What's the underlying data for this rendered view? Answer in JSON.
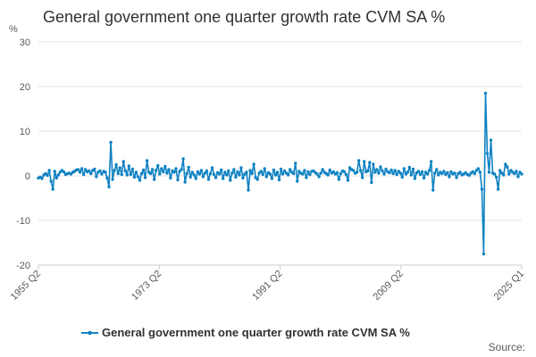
{
  "chart_data": {
    "type": "line",
    "title": "General government one quarter growth rate CVM SA %",
    "ylabel": "%",
    "xlabel": "",
    "ylim": [
      -20,
      30
    ],
    "yticks": [
      -20,
      -10,
      0,
      10,
      20,
      30
    ],
    "x_start": "1955 Q2",
    "x_end": "2025 Q1",
    "xtick_labels": [
      "1955 Q2",
      "1973 Q2",
      "1991 Q2",
      "2009 Q2",
      "2025 Q1"
    ],
    "legend": "General government one quarter growth rate CVM SA %",
    "legend_position": "bottom",
    "source_label": "Source:",
    "color": "#0f82c2",
    "series": [
      {
        "name": "General government one quarter growth rate CVM SA %",
        "values": [
          -0.5,
          -0.3,
          -0.6,
          0.2,
          0.5,
          0.1,
          1.2,
          -1.2,
          -3.0,
          1.0,
          -0.5,
          0.2,
          0.8,
          1.2,
          0.9,
          0.3,
          0.5,
          0.6,
          0.4,
          0.8,
          1.0,
          1.3,
          1.4,
          0.8,
          1.6,
          0.3,
          1.4,
          0.9,
          1.1,
          0.5,
          1.2,
          1.5,
          -0.2,
          0.8,
          1.1,
          0.4,
          1.0,
          0.8,
          -0.5,
          -2.5,
          7.5,
          -0.8,
          1.2,
          2.5,
          0.5,
          1.8,
          0.3,
          3.2,
          1.1,
          0.2,
          2.2,
          0.3,
          1.5,
          -0.3,
          0.8,
          -0.2,
          -1.0,
          0.5,
          1.3,
          -0.4,
          3.4,
          0.8,
          0.5,
          1.4,
          -0.8,
          1.2,
          2.3,
          0.4,
          1.6,
          0.9,
          2.1,
          0.6,
          1.4,
          -0.5,
          1.1,
          0.8,
          1.6,
          -0.9,
          1.0,
          1.4,
          3.8,
          -1.4,
          0.5,
          1.9,
          -0.3,
          0.8,
          0.2,
          -0.6,
          0.9,
          0.4,
          1.2,
          -0.2,
          0.6,
          1.1,
          -0.8,
          0.5,
          1.8,
          0.3,
          -0.4,
          0.7,
          0.4,
          1.3,
          -0.6,
          0.8,
          0.2,
          1.1,
          -1.0,
          0.6,
          1.4,
          -0.3,
          0.9,
          0.2,
          1.8,
          -0.5,
          0.4,
          0.8,
          -3.2,
          1.2,
          0.5,
          2.6,
          -0.4,
          -0.8,
          0.6,
          1.0,
          0.3,
          1.6,
          -0.2,
          0.7,
          0.4,
          -0.6,
          1.3,
          0.2,
          0.8,
          -0.9,
          1.5,
          0.4,
          1.1,
          0.6,
          0.2,
          1.4,
          0.8,
          0.5,
          2.8,
          -1.2,
          1.0,
          0.6,
          0.4,
          1.2,
          -0.4,
          0.9,
          0.3,
          1.0,
          1.1,
          0.7,
          0.4,
          -0.2,
          0.6,
          1.4,
          0.8,
          0.5,
          0.2,
          1.3,
          0.6,
          0.9,
          0.4,
          0.7,
          -0.8,
          0.5,
          1.1,
          0.9,
          0.3,
          -1.0,
          1.8,
          1.4,
          1.2,
          0.6,
          0.8,
          3.4,
          1.2,
          -0.4,
          3.2,
          0.9,
          1.1,
          3.0,
          -1.5,
          2.6,
          0.8,
          1.4,
          0.6,
          2.0,
          1.1,
          0.4,
          1.5,
          0.9,
          0.7,
          1.3,
          0.5,
          1.2,
          0.3,
          1.0,
          0.6,
          -0.3,
          1.6,
          0.4,
          0.8,
          1.9,
          0.2,
          1.5,
          -0.6,
          0.7,
          1.0,
          0.3,
          0.9,
          -0.5,
          0.8,
          0.4,
          1.2,
          3.2,
          -3.2,
          0.6,
          1.4,
          0.2,
          0.8,
          0.5,
          1.0,
          0.3,
          0.7,
          -0.2,
          0.9,
          0.4,
          0.6,
          -0.4,
          0.5,
          0.8,
          0.2,
          0.4,
          0.7,
          0.3,
          0.1,
          0.6,
          0.9,
          0.5,
          1.2,
          1.6,
          0.8,
          -3.0,
          -17.5,
          18.5,
          5.0,
          0.8,
          8.0,
          0.6,
          0.4,
          -0.3,
          -3.0,
          1.2,
          0.6,
          0.2,
          2.6,
          2.0,
          0.4,
          1.2,
          0.8,
          0.5,
          1.0,
          -0.2,
          0.8,
          0.4
        ]
      }
    ]
  }
}
